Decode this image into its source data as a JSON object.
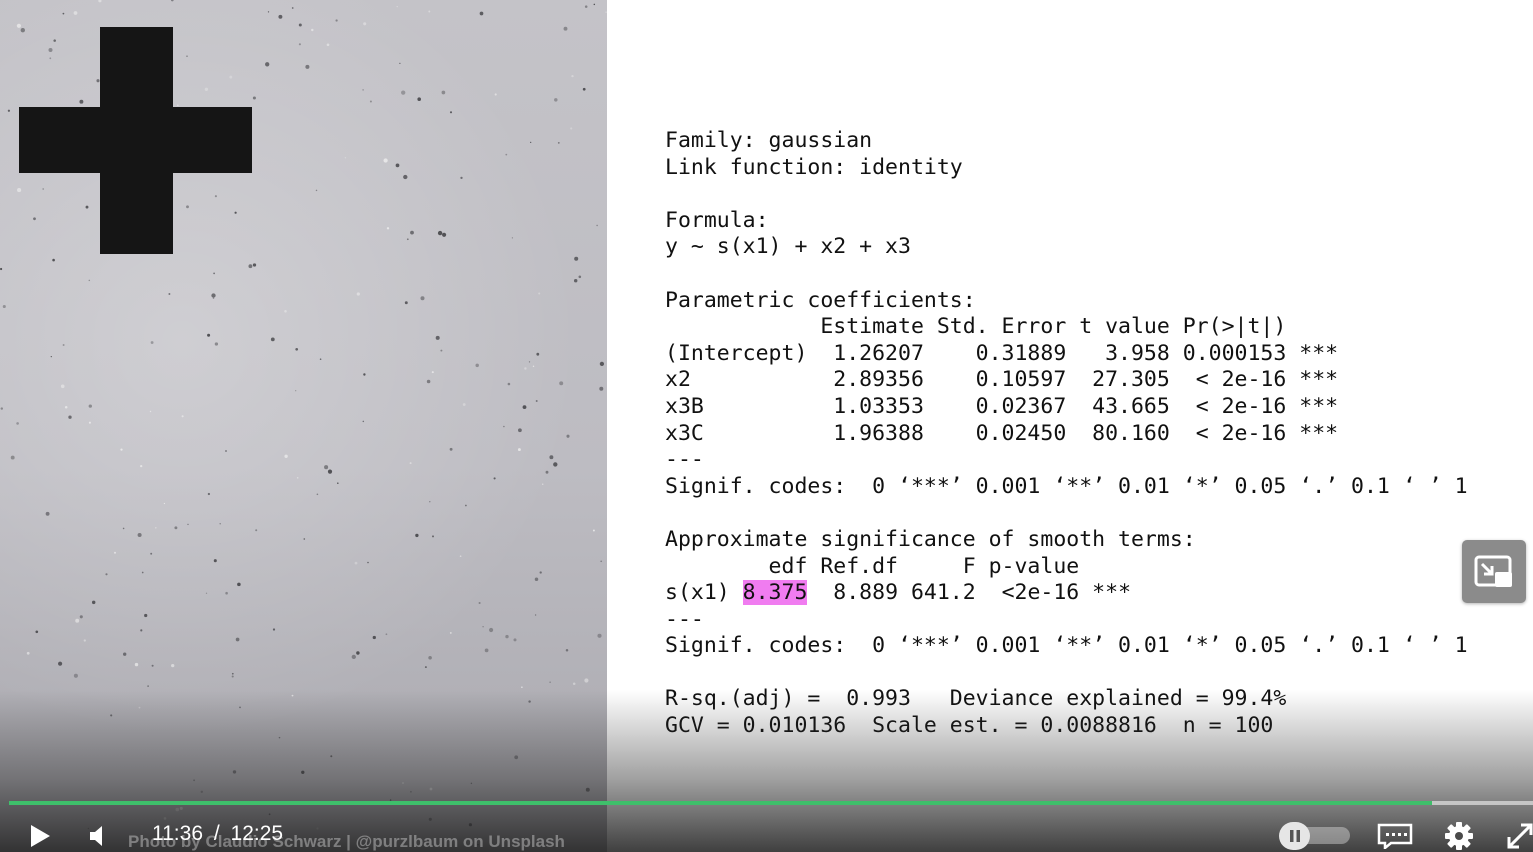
{
  "slide": {
    "lines": [
      "Family: gaussian",
      "Link function: identity",
      "",
      "Formula:",
      "y ~ s(x1) + x2 + x3",
      "",
      "Parametric coefficients:",
      "            Estimate Std. Error t value Pr(>|t|)",
      "(Intercept)  1.26207    0.31889   3.958 0.000153 ***",
      "x2           2.89356    0.10597  27.305  < 2e-16 ***",
      "x3B          1.03353    0.02367  43.665  < 2e-16 ***",
      "x3C          1.96388    0.02450  80.160  < 2e-16 ***",
      "---",
      "Signif. codes:  0 ‘***’ 0.001 ‘**’ 0.01 ‘*’ 0.05 ‘.’ 0.1 ‘ ’ 1",
      "",
      "Approximate significance of smooth terms:",
      "        edf Ref.df     F p-value"
    ],
    "smooth_row": {
      "term": "s(x1) ",
      "edf": "8.375",
      "rest": "  8.889 641.2  <2e-16 ***"
    },
    "lines_after": [
      "---",
      "Signif. codes:  0 ‘***’ 0.001 ‘**’ 0.01 ‘*’ 0.05 ‘.’ 0.1 ‘ ’ 1",
      "",
      "R-sq.(adj) =  0.993   Deviance explained = 99.4%",
      "GCV = 0.010136  Scale est. = 0.0088816  n = 100"
    ]
  },
  "photo": {
    "credit": "Photo by Claudio Schwarz | @purzlbaum on Unsplash"
  },
  "player": {
    "current_time": "11:36",
    "separator": "/",
    "duration": "12:25",
    "progress_fraction": 0.934,
    "accent_color": "#3fbf6b",
    "icons": {
      "play": "play-icon",
      "volume": "volume-icon",
      "pause": "pause-icon",
      "captions": "captions-icon",
      "settings": "gear-icon",
      "fullscreen": "fullscreen-icon",
      "pip": "picture-in-picture-icon"
    }
  }
}
